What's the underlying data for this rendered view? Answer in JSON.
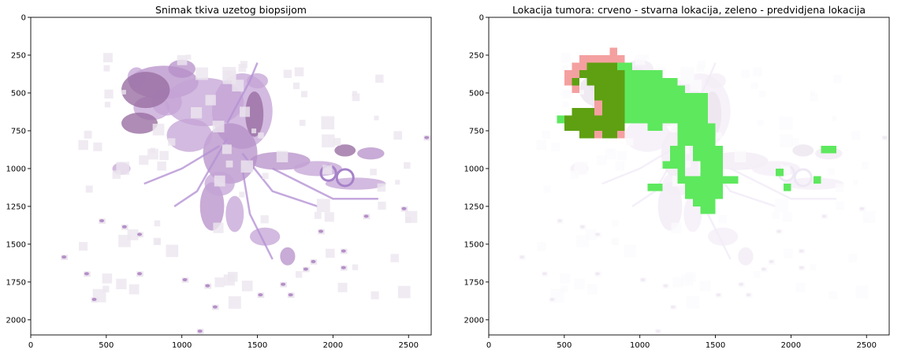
{
  "chart_data": [
    {
      "type": "image",
      "title": "Snimak tkiva uzetog biopsijom",
      "xlim": [
        0,
        2650
      ],
      "ylim": [
        2100,
        0
      ],
      "x_ticks": [
        0,
        500,
        1000,
        1500,
        2000,
        2500
      ],
      "y_ticks": [
        0,
        250,
        500,
        750,
        1000,
        1250,
        1500,
        1750,
        2000
      ],
      "colors": {
        "tissue_dark": "#9a6fa3",
        "tissue_light": "#c4a3d6",
        "tissue_bg": "#ece6ef"
      }
    },
    {
      "type": "heatmap",
      "title": "Lokacija tumora: crveno - stvarna lokacija, zeleno - predvidjena lokacija",
      "xlim": [
        0,
        2650
      ],
      "ylim": [
        2100,
        0
      ],
      "x_ticks": [
        0,
        500,
        1000,
        1500,
        2000,
        2500
      ],
      "y_ticks": [
        0,
        250,
        500,
        750,
        1000,
        1250,
        1500,
        1750,
        2000
      ],
      "colors": {
        "actual": "#f4a0a0",
        "predicted": "#5ee85e",
        "overlap": "#5ea012"
      },
      "actual_location": [
        {
          "x0": 800,
          "y0": 200,
          "x1": 850,
          "y1": 250
        },
        {
          "x0": 600,
          "y0": 250,
          "x1": 900,
          "y1": 300
        },
        {
          "x0": 500,
          "y0": 350,
          "x1": 550,
          "y1": 450
        },
        {
          "x0": 550,
          "y0": 300,
          "x1": 600,
          "y1": 450
        },
        {
          "x0": 600,
          "y0": 300,
          "x1": 650,
          "y1": 400
        },
        {
          "x0": 550,
          "y0": 450,
          "x1": 600,
          "y1": 500
        },
        {
          "x0": 700,
          "y0": 550,
          "x1": 750,
          "y1": 800
        },
        {
          "x0": 850,
          "y0": 750,
          "x1": 900,
          "y1": 800
        }
      ],
      "predicted_location": [
        {
          "x0": 850,
          "y0": 300,
          "x1": 950,
          "y1": 350
        },
        {
          "x0": 900,
          "y0": 350,
          "x1": 1150,
          "y1": 400
        },
        {
          "x0": 900,
          "y0": 400,
          "x1": 1250,
          "y1": 500
        },
        {
          "x0": 1200,
          "y0": 450,
          "x1": 1300,
          "y1": 550
        },
        {
          "x0": 1400,
          "y0": 500,
          "x1": 1450,
          "y1": 550
        },
        {
          "x0": 900,
          "y0": 500,
          "x1": 1450,
          "y1": 700
        },
        {
          "x0": 1050,
          "y0": 700,
          "x1": 1150,
          "y1": 750
        },
        {
          "x0": 1250,
          "y0": 700,
          "x1": 1500,
          "y1": 850
        },
        {
          "x0": 1200,
          "y0": 850,
          "x1": 1300,
          "y1": 950
        },
        {
          "x0": 1350,
          "y0": 850,
          "x1": 1550,
          "y1": 950
        },
        {
          "x0": 1150,
          "y0": 950,
          "x1": 1250,
          "y1": 1000
        },
        {
          "x0": 1250,
          "y0": 950,
          "x1": 1300,
          "y1": 1050
        },
        {
          "x0": 1400,
          "y0": 950,
          "x1": 1550,
          "y1": 1050
        },
        {
          "x0": 1250,
          "y0": 1050,
          "x1": 1650,
          "y1": 1100
        },
        {
          "x0": 1300,
          "y0": 1100,
          "x1": 1550,
          "y1": 1200
        },
        {
          "x0": 1350,
          "y0": 1200,
          "x1": 1500,
          "y1": 1250
        },
        {
          "x0": 1400,
          "y0": 1250,
          "x1": 1500,
          "y1": 1300
        },
        {
          "x0": 1050,
          "y0": 1100,
          "x1": 1150,
          "y1": 1150
        },
        {
          "x0": 1900,
          "y0": 1000,
          "x1": 1950,
          "y1": 1050
        },
        {
          "x0": 1950,
          "y0": 1100,
          "x1": 2000,
          "y1": 1150
        },
        {
          "x0": 2150,
          "y0": 1050,
          "x1": 2200,
          "y1": 1100
        },
        {
          "x0": 2200,
          "y0": 850,
          "x1": 2300,
          "y1": 900
        },
        {
          "x0": 450,
          "y0": 650,
          "x1": 500,
          "y1": 700
        }
      ],
      "overlap_location": [
        {
          "x0": 650,
          "y0": 300,
          "x1": 850,
          "y1": 350
        },
        {
          "x0": 600,
          "y0": 350,
          "x1": 900,
          "y1": 400
        },
        {
          "x0": 550,
          "y0": 400,
          "x1": 600,
          "y1": 450
        },
        {
          "x0": 650,
          "y0": 400,
          "x1": 900,
          "y1": 450
        },
        {
          "x0": 700,
          "y0": 450,
          "x1": 900,
          "y1": 550
        },
        {
          "x0": 750,
          "y0": 550,
          "x1": 900,
          "y1": 650
        },
        {
          "x0": 550,
          "y0": 600,
          "x1": 700,
          "y1": 650
        },
        {
          "x0": 500,
          "y0": 650,
          "x1": 900,
          "y1": 750
        },
        {
          "x0": 600,
          "y0": 750,
          "x1": 700,
          "y1": 800
        },
        {
          "x0": 750,
          "y0": 750,
          "x1": 850,
          "y1": 800
        }
      ]
    }
  ]
}
